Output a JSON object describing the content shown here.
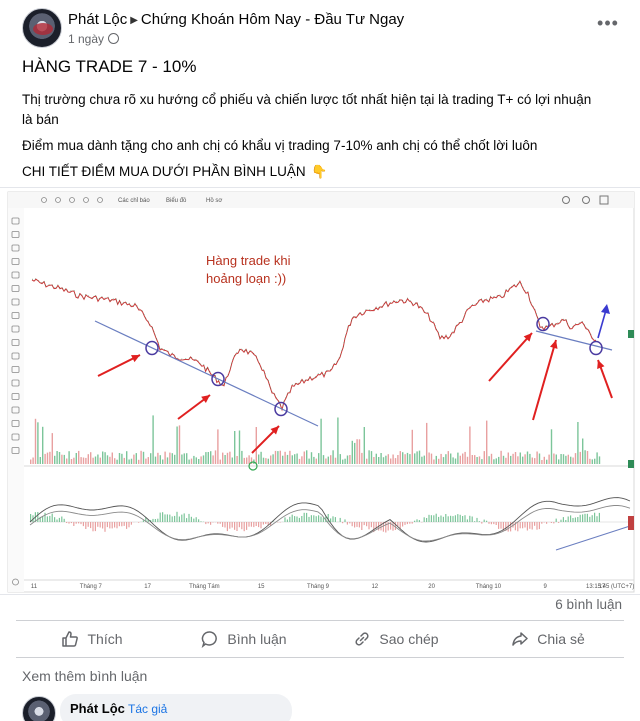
{
  "post": {
    "author": "Phát Lộc",
    "group": "Chứng Khoán Hôm Nay - Đầu Tư Ngay",
    "time": "1 ngày",
    "more_label": "•••",
    "title": "HÀNG TRADE 7 - 10%",
    "line1": "Thị trường chưa rõ xu hướng cổ phiếu và chiến lược tốt nhất hiện tại là trading T+ có lợi nhuận",
    "line1b": "là bán",
    "line2": "Điểm mua dành tặng cho anh chị có khẩu vị trading 7-10% anh chị có thể chốt lời luôn",
    "line3": "CHI TIẾT ĐIỂM MUA DƯỚI PHẦN BÌNH LUẬN",
    "line3_emoji": "👇"
  },
  "chart_image": {
    "toolbar_items": [
      "Các chỉ báo",
      "Biểu đồ",
      "Hồ sơ"
    ],
    "annotation": [
      "Hàng trade khi",
      "hoảng loạn :))"
    ],
    "x_tick_labels": [
      "11",
      "Tháng 7",
      "17",
      "Tháng Tám",
      "15",
      "Tháng 9",
      "12",
      "20",
      "Tháng 10",
      "9",
      "17"
    ],
    "time_readout": "13:15:45 (UTC+7)",
    "colors": {
      "price": "#c83a3a",
      "trendline": "#6a7ec0",
      "arrow": "#e02020",
      "circle": "#4a3aa0",
      "up_arrow": "#3a3ad0",
      "volume_up": "#7cc59a",
      "volume_down": "#e8a0a0",
      "macd_line1": "#555555",
      "macd_line2": "#8a8a8a"
    }
  },
  "stats": {
    "comments": "6 bình luận"
  },
  "actions": {
    "like": "Thích",
    "comment": "Bình luận",
    "copy": "Sao chép",
    "share": "Chia sẻ"
  },
  "see_more_comments": "Xem thêm bình luận",
  "comment": {
    "author": "Phát Lộc",
    "badge": "Tác giả"
  }
}
